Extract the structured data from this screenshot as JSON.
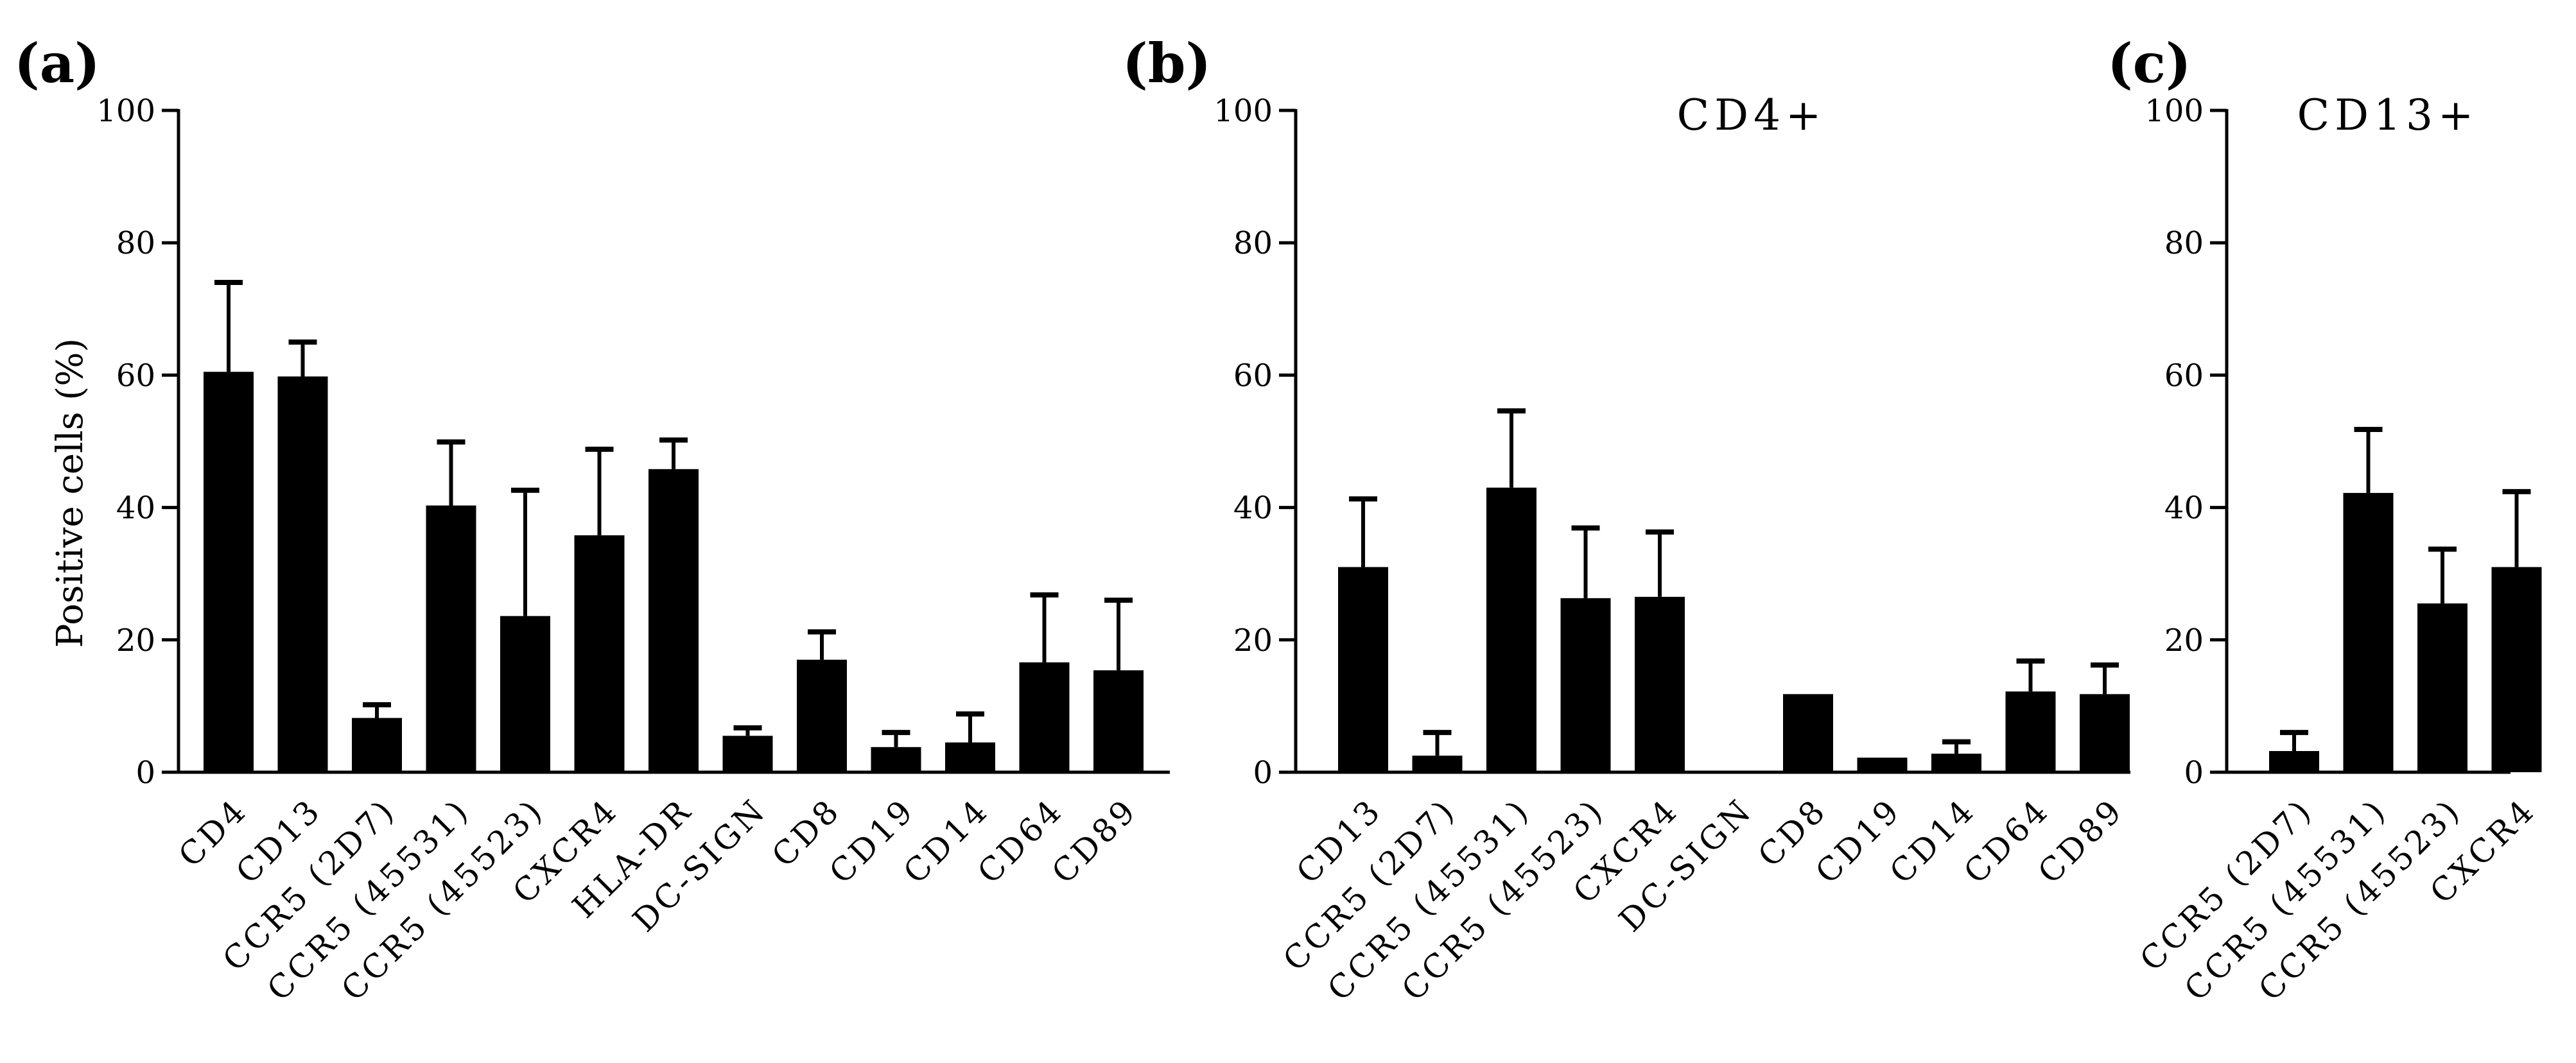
{
  "figure": {
    "ylabel": "Positive cells (%)"
  },
  "chart_data": [
    {
      "type": "bar",
      "panel": "(a)",
      "title": "",
      "ylabel": "Positive cells (%)",
      "xlabel": "",
      "ylim": [
        0,
        100
      ],
      "yticks": [
        0,
        20,
        40,
        60,
        80,
        100
      ],
      "categories": [
        "CD4",
        "CD13",
        "CCR5 (2D7)",
        "CCR5 (45531)",
        "CCR5 (45523)",
        "CXCR4",
        "HLA-DR",
        "DC-SIGN",
        "CD8",
        "CD19",
        "CD14",
        "CD64",
        "CD89"
      ],
      "values": [
        60.5,
        59.8,
        8.2,
        40.3,
        23.6,
        35.8,
        45.8,
        5.5,
        17.0,
        3.8,
        4.5,
        16.6,
        15.4
      ],
      "errors": [
        13.5,
        5.2,
        2.0,
        9.6,
        19.0,
        13.0,
        4.4,
        1.2,
        4.2,
        2.2,
        4.3,
        10.2,
        10.6
      ]
    },
    {
      "type": "bar",
      "panel": "(b)",
      "title": "CD4+",
      "ylabel": "",
      "xlabel": "",
      "ylim": [
        0,
        100
      ],
      "yticks": [
        0,
        20,
        40,
        60,
        80,
        100
      ],
      "categories": [
        "CD13",
        "CCR5 (2D7)",
        "CCR5 (45531)",
        "CCR5 (45523)",
        "CXCR4",
        "DC-SIGN",
        "CD8",
        "CD19",
        "CD14",
        "CD64",
        "CD89"
      ],
      "values": [
        31.0,
        2.5,
        43.0,
        26.3,
        26.5,
        0,
        11.8,
        2.2,
        2.8,
        12.2,
        11.8
      ],
      "errors": [
        10.3,
        3.5,
        11.6,
        10.6,
        9.8,
        0,
        0,
        0,
        1.8,
        4.6,
        4.4
      ]
    },
    {
      "type": "bar",
      "panel": "(c)",
      "title": "CD13+",
      "ylabel": "",
      "xlabel": "",
      "ylim": [
        0,
        100
      ],
      "yticks": [
        0,
        20,
        40,
        60,
        80,
        100
      ],
      "categories": [
        "CCR5 (2D7)",
        "CCR5 (45531)",
        "CCR5 (45523)",
        "CXCR4"
      ],
      "values": [
        3.2,
        42.2,
        25.5,
        31.0
      ],
      "errors": [
        2.8,
        9.6,
        8.2,
        11.4
      ]
    }
  ]
}
